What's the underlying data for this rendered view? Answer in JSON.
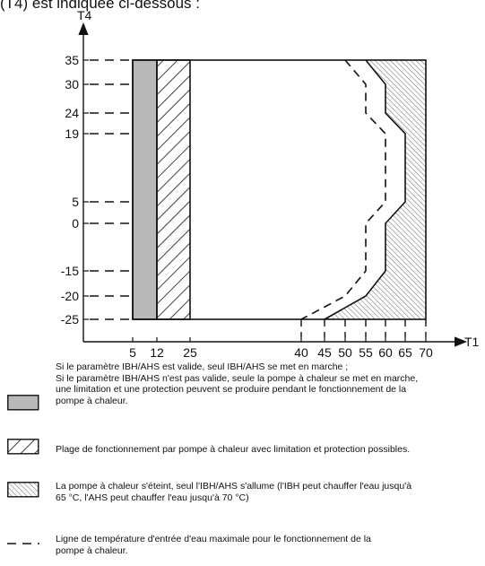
{
  "caption": "(T4) est indiquée ci-dessous :",
  "chart_data": {
    "type": "area",
    "title": "",
    "xlabel": "T1",
    "ylabel": "T4",
    "x_ticks": [
      5,
      12,
      25,
      40,
      45,
      50,
      55,
      60,
      65,
      70
    ],
    "y_ticks": [
      35,
      30,
      24,
      19,
      5,
      0,
      -15,
      -20,
      -25
    ],
    "regions": [
      {
        "name": "gray",
        "fill": "#b9b9b9",
        "x": [
          5,
          12
        ],
        "y": [
          -25,
          35
        ]
      },
      {
        "name": "hatched",
        "x": [
          12,
          25
        ],
        "y": [
          -25,
          35
        ]
      },
      {
        "name": "dense-hatched",
        "boundary": [
          [
            55,
            35
          ],
          [
            60,
            30
          ],
          [
            60,
            24
          ],
          [
            65,
            19
          ],
          [
            65,
            5
          ],
          [
            60,
            0
          ],
          [
            60,
            -15
          ],
          [
            55,
            -20
          ],
          [
            45,
            -25
          ]
        ]
      }
    ],
    "solid_boundary": [
      [
        55,
        35
      ],
      [
        60,
        30
      ],
      [
        60,
        24
      ],
      [
        65,
        19
      ],
      [
        65,
        5
      ],
      [
        60,
        0
      ],
      [
        60,
        -15
      ],
      [
        55,
        -20
      ],
      [
        45,
        -25
      ]
    ],
    "dashed_line": [
      [
        50,
        35
      ],
      [
        55,
        30
      ],
      [
        55,
        24
      ],
      [
        60,
        19
      ],
      [
        60,
        5
      ],
      [
        55,
        0
      ],
      [
        55,
        -15
      ],
      [
        50,
        -20
      ],
      [
        40,
        -25
      ]
    ]
  },
  "legend": [
    {
      "swatch": "gray",
      "lines": [
        "Si le paramètre IBH/AHS est valide, seul IBH/AHS se met en marche ;",
        "Si le paramètre IBH/AHS n'est pas valide, seule la pompe à chaleur se met en marche,",
        "une limitation et une protection peuvent se produire pendant le fonctionnement de la",
        "pompe à chaleur."
      ]
    },
    {
      "swatch": "hatched",
      "lines": [
        "Plage de fonctionnement par pompe à chaleur avec limitation et protection possibles."
      ]
    },
    {
      "swatch": "dense-hatched",
      "lines": [
        "La pompe à chaleur s'éteint, seul l'IBH/AHS s'allume (l'IBH peut chauffer l'eau jusqu'à",
        "65 °C, l'AHS peut chauffer l'eau jusqu'à 70 °C)"
      ]
    },
    {
      "swatch": "dashed",
      "lines": [
        "Ligne de température d'entrée d'eau maximale pour le fonctionnement de la",
        "pompe à chaleur."
      ]
    }
  ]
}
